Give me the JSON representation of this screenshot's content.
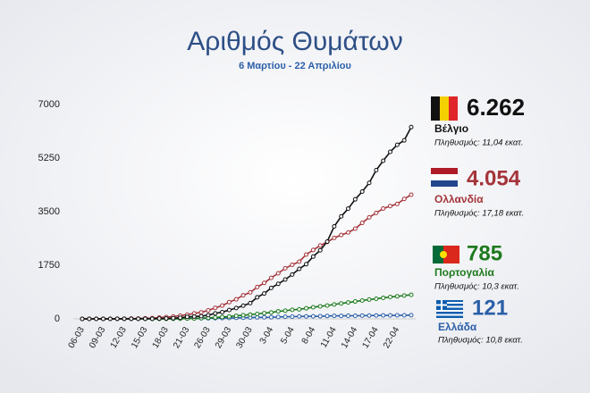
{
  "chart_data": {
    "type": "line",
    "title": "Αριθμός Θυμάτων",
    "subtitle": "6 Μαρτίου - 22 Απριλίου",
    "categories": [
      "06-03",
      null,
      null,
      "09-03",
      null,
      null,
      "12-03",
      null,
      null,
      "15-03",
      null,
      null,
      "18-03",
      null,
      null,
      "21-03",
      null,
      null,
      "26-03",
      null,
      null,
      "29-03",
      null,
      null,
      "30-03",
      null,
      null,
      "3-04",
      null,
      null,
      "5-04",
      null,
      null,
      "8-04",
      null,
      null,
      "11-04",
      null,
      null,
      "14-04",
      null,
      null,
      "17-04",
      null,
      null,
      "22-04",
      null,
      null
    ],
    "ylim": [
      0,
      7000
    ],
    "yticks": [
      0,
      1750,
      3500,
      5250,
      7000
    ],
    "grid": false,
    "series": [
      {
        "name": "Βέλγιο",
        "color": "#111111",
        "end_label": "6.262",
        "population": "Πληθυσμός: 11,04 εκατ.",
        "values": [
          0,
          0,
          0,
          0,
          0,
          3,
          3,
          3,
          4,
          4,
          5,
          10,
          14,
          21,
          37,
          67,
          75,
          88,
          122,
          178,
          220,
          289,
          353,
          431,
          513,
          705,
          828,
          1011,
          1143,
          1283,
          1447,
          1632,
          1785,
          2035,
          2240,
          2523,
          3019,
          3346,
          3600,
          3903,
          4157,
          4440,
          4857,
          5163,
          5453,
          5683,
          5828,
          6262
        ]
      },
      {
        "name": "Ολλανδία",
        "color": "#a4343a",
        "end_label": "4.054",
        "population": "Πληθυσμός: 17,18 εκατ.",
        "values": [
          1,
          1,
          3,
          3,
          4,
          5,
          5,
          10,
          12,
          20,
          24,
          43,
          58,
          76,
          106,
          136,
          179,
          213,
          276,
          356,
          434,
          546,
          639,
          771,
          864,
          1039,
          1173,
          1339,
          1487,
          1651,
          1766,
          1867,
          2101,
          2248,
          2396,
          2511,
          2643,
          2737,
          2823,
          2945,
          3134,
          3315,
          3459,
          3601,
          3684,
          3751,
          3916,
          4054
        ]
      },
      {
        "name": "Πορτογαλία",
        "color": "#1e7a1e",
        "end_label": "785",
        "population": "Πληθυσμός: 10,3 εκατ.",
        "values": [
          0,
          0,
          0,
          0,
          0,
          0,
          0,
          0,
          0,
          0,
          0,
          1,
          2,
          3,
          6,
          12,
          14,
          23,
          33,
          43,
          60,
          76,
          100,
          119,
          140,
          160,
          187,
          209,
          246,
          266,
          295,
          311,
          345,
          380,
          409,
          435,
          470,
          504,
          535,
          567,
          599,
          629,
          657,
          687,
          714,
          735,
          762,
          785
        ]
      },
      {
        "name": "Ελλάδα",
        "color": "#2b5fa8",
        "end_label": "121",
        "population": "Πληθυσμός: 10,8 εκατ.",
        "values": [
          0,
          0,
          0,
          0,
          0,
          0,
          1,
          1,
          3,
          4,
          4,
          5,
          5,
          6,
          6,
          13,
          15,
          17,
          20,
          22,
          26,
          28,
          32,
          38,
          43,
          49,
          50,
          53,
          63,
          68,
          73,
          79,
          81,
          83,
          86,
          93,
          98,
          99,
          101,
          102,
          105,
          108,
          110,
          113,
          114,
          116,
          116,
          121
        ]
      }
    ]
  }
}
